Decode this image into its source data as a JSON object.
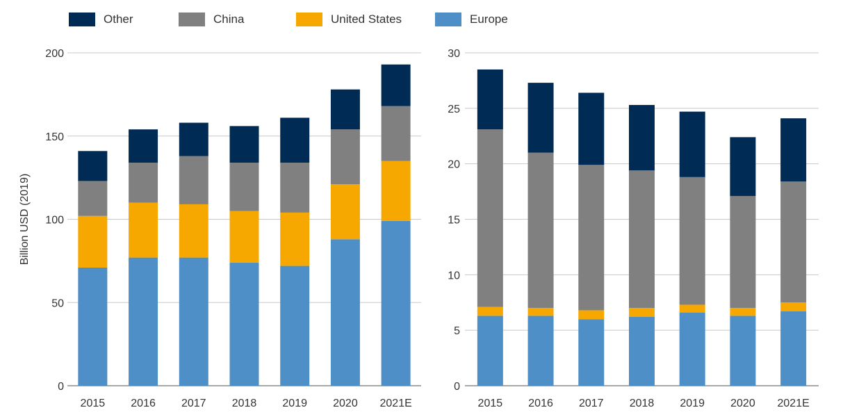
{
  "legend": [
    {
      "name": "Other",
      "color": "#002b54"
    },
    {
      "name": "China",
      "color": "#808080"
    },
    {
      "name": "United States",
      "color": "#f7a800"
    },
    {
      "name": "Europe",
      "color": "#4f8fc7"
    }
  ],
  "chart_data": [
    {
      "type": "bar",
      "stacked": true,
      "categories": [
        "2015",
        "2016",
        "2017",
        "2018",
        "2019",
        "2020",
        "2021E"
      ],
      "ylabel": "Billion USD (2019)",
      "ylim": [
        0,
        200
      ],
      "yticks": [
        0,
        50,
        100,
        150,
        200
      ],
      "grid": true,
      "series": [
        {
          "name": "Europe",
          "values": [
            71,
            77,
            77,
            74,
            72,
            88,
            99
          ]
        },
        {
          "name": "United States",
          "values": [
            31,
            33,
            32,
            31,
            32,
            33,
            36
          ]
        },
        {
          "name": "China",
          "values": [
            21,
            24,
            29,
            29,
            30,
            33,
            33
          ]
        },
        {
          "name": "Other",
          "values": [
            18,
            20,
            20,
            22,
            27,
            24,
            25
          ]
        }
      ]
    },
    {
      "type": "bar",
      "stacked": true,
      "categories": [
        "2015",
        "2016",
        "2017",
        "2018",
        "2019",
        "2020",
        "2021E"
      ],
      "ylabel": "",
      "ylim": [
        0,
        30
      ],
      "yticks": [
        0,
        5,
        10,
        15,
        20,
        25,
        30
      ],
      "grid": true,
      "series": [
        {
          "name": "Europe",
          "values": [
            6.3,
            6.3,
            6.0,
            6.2,
            6.6,
            6.3,
            6.7
          ]
        },
        {
          "name": "United States",
          "values": [
            0.8,
            0.7,
            0.8,
            0.8,
            0.7,
            0.7,
            0.8
          ]
        },
        {
          "name": "China",
          "values": [
            16.0,
            14.0,
            13.1,
            12.4,
            11.5,
            10.1,
            10.9
          ]
        },
        {
          "name": "Other",
          "values": [
            5.4,
            6.3,
            6.5,
            5.9,
            5.9,
            5.3,
            5.7
          ]
        }
      ]
    }
  ]
}
